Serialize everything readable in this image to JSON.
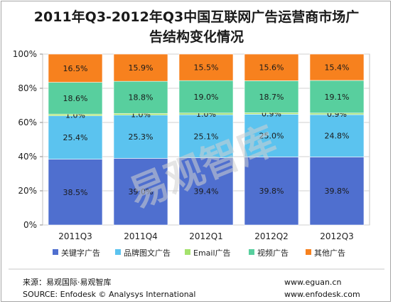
{
  "title_lines": [
    "2011年Q3-2012年Q3中国互联网广告运营商市场广",
    "告结构变化情况"
  ],
  "chart_data": {
    "type": "bar",
    "stacked": true,
    "percent": true,
    "categories": [
      "2011Q3",
      "2011Q4",
      "2012Q1",
      "2012Q2",
      "2012Q3"
    ],
    "series": [
      {
        "name": "关键字广告",
        "color": "#4f6fcf",
        "values": [
          38.5,
          39.0,
          39.4,
          39.8,
          39.8
        ]
      },
      {
        "name": "品牌图文广告",
        "color": "#5bc3ef",
        "values": [
          25.4,
          25.3,
          25.1,
          25.0,
          24.8
        ]
      },
      {
        "name": "Email广告",
        "color": "#a4e26d",
        "values": [
          1.0,
          1.0,
          1.0,
          0.9,
          0.9
        ]
      },
      {
        "name": "视频广告",
        "color": "#58cf9e",
        "values": [
          18.6,
          18.8,
          19.0,
          18.7,
          19.1
        ]
      },
      {
        "name": "其他广告",
        "color": "#f7811e",
        "values": [
          16.5,
          15.9,
          15.5,
          15.6,
          15.4
        ]
      }
    ],
    "labels": [
      [
        "38.5%",
        "25.4%",
        "1.0%",
        "18.6%",
        "16.5%"
      ],
      [
        "39.0%",
        "25.3%",
        "1.0%",
        "18.8%",
        "15.9%"
      ],
      [
        "39.4%",
        "25.1%",
        "1.0%",
        "19.0%",
        "15.5%"
      ],
      [
        "39.8%",
        "25.0%",
        "0.9%",
        "18.7%",
        "15.6%"
      ],
      [
        "39.8%",
        "24.8%",
        "0.9%",
        "19.1%",
        "15.4%"
      ]
    ],
    "yticks": [
      "0%",
      "20%",
      "40%",
      "60%",
      "80%",
      "100%"
    ],
    "ylim": [
      0,
      100
    ],
    "grid": true,
    "legend_position": "bottom"
  },
  "watermark": "易观智库",
  "footer": {
    "source_cn": "来源：易观国际·易观智库",
    "source_en": "SOURCE: Enfodesk © Analysys International",
    "url1": "www.eguan.cn",
    "url2": "www.enfodesk.com"
  }
}
